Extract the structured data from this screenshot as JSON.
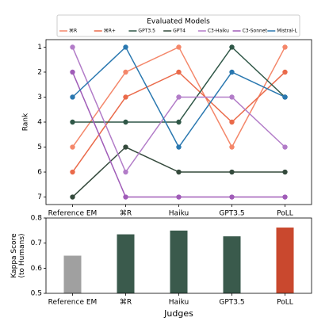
{
  "chart_data": [
    {
      "type": "line",
      "ylabel": "Rank",
      "categories": [
        "Reference EM",
        "⌘R",
        "Haiku",
        "GPT3.5",
        "PoLL"
      ],
      "ylim": [
        0.7,
        7.3
      ],
      "y_inverted": true,
      "yticks": [
        1,
        2,
        3,
        4,
        5,
        6,
        7
      ],
      "legend": "upper center",
      "legend_title": "Evaluated Models",
      "series": [
        {
          "name": "⌘R",
          "color": "#f4876a",
          "values": [
            5,
            2,
            1,
            5,
            1
          ]
        },
        {
          "name": "⌘R+",
          "color": "#ea6a4a",
          "values": [
            6,
            3,
            2,
            4,
            2
          ]
        },
        {
          "name": "GPT3.5",
          "color": "#2f5747",
          "values": [
            4,
            4,
            4,
            1,
            3
          ]
        },
        {
          "name": "GPT4",
          "color": "#344a3c",
          "values": [
            7,
            5,
            6,
            6,
            6
          ]
        },
        {
          "name": "C3-Haiku",
          "color": "#b27cc8",
          "values": [
            1,
            6,
            3,
            3,
            5
          ]
        },
        {
          "name": "C3-Sonnet",
          "color": "#a05cb8",
          "values": [
            2,
            7,
            7,
            7,
            7
          ]
        },
        {
          "name": "Mistral-L",
          "color": "#2a78b0",
          "values": [
            3,
            1,
            5,
            2,
            3
          ]
        }
      ]
    },
    {
      "type": "bar",
      "ylabel": "Kappa Score\n(to Humans)",
      "xlabel": "Judges",
      "categories": [
        "Reference EM",
        "⌘R",
        "Haiku",
        "GPT3.5",
        "PoLL"
      ],
      "values": [
        0.65,
        0.735,
        0.75,
        0.727,
        0.762
      ],
      "colors": [
        "#a0a0a0",
        "#3a5a4c",
        "#3a5a4c",
        "#3a5a4c",
        "#c9482e"
      ],
      "ylim": [
        0.5,
        0.8
      ],
      "yticks": [
        0.5,
        0.6,
        0.7,
        0.8
      ]
    }
  ]
}
